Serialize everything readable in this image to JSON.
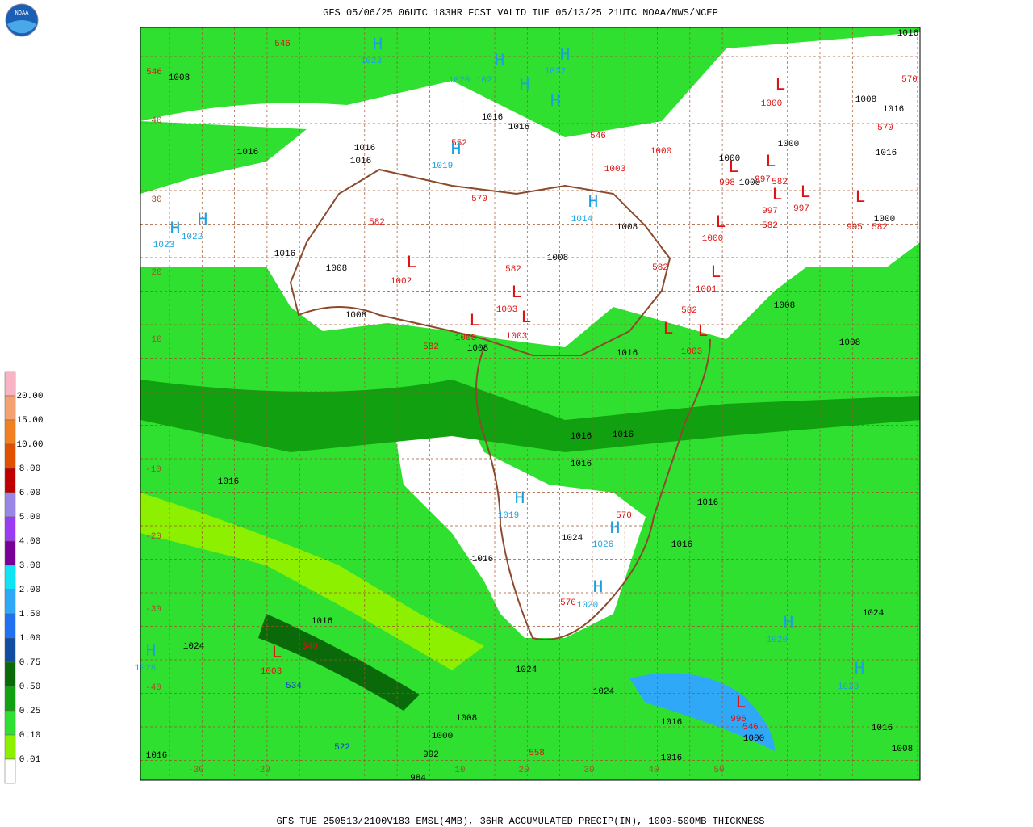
{
  "header": {
    "title": "GFS 05/06/25 06UTC 183HR FCST VALID TUE 05/13/25 21UTC NOAA/NWS/NCEP",
    "logo": "NOAA"
  },
  "footer": {
    "caption": "GFS TUE 250513/2100V183 EMSL(4MB), 36HR ACCUMULATED PRECIP(IN), 1000-500MB THICKNESS"
  },
  "legend": {
    "labels": [
      "20.00",
      "15.00",
      "10.00",
      "8.00",
      "6.00",
      "5.00",
      "4.00",
      "3.00",
      "2.00",
      "1.50",
      "1.00",
      "0.75",
      "0.50",
      "0.25",
      "0.10",
      "0.01"
    ],
    "colors": [
      "#f8b4c4",
      "#f4a070",
      "#f08020",
      "#e05000",
      "#c00000",
      "#9a86e6",
      "#9a3cf0",
      "#780096",
      "#10e4f4",
      "#30a8f8",
      "#2070f0",
      "#104ca0",
      "#0a6a0a",
      "#10a010",
      "#30e030",
      "#8cf000",
      "#ffffff"
    ]
  },
  "map": {
    "high_symbol": "H",
    "low_symbol": "L",
    "isobar_labels": [
      "1016",
      "1008",
      "1016",
      "1016",
      "1016",
      "1016",
      "1008",
      "1008",
      "1008",
      "1000",
      "1000",
      "1000",
      "1008",
      "1016",
      "1016",
      "1000",
      "1008",
      "1008",
      "1008",
      "1008",
      "1016",
      "1016",
      "1016",
      "1016",
      "1016",
      "1016",
      "1016",
      "1024",
      "1016",
      "1024",
      "1024",
      "1016",
      "1024",
      "1024",
      "1008",
      "1000",
      "992",
      "984",
      "1016",
      "1016",
      "1008",
      "1016",
      "1016",
      "1000",
      "1016",
      "1016"
    ],
    "high_values": [
      "1023",
      "1020",
      "1021",
      "1022",
      "1019",
      "1014",
      "1023",
      "1022",
      "1019",
      "1026",
      "1020",
      "1020",
      "1028",
      "1023"
    ],
    "low_values": [
      "1000",
      "1000",
      "1003",
      "998",
      "997",
      "997",
      "997",
      "995",
      "1000",
      "1001",
      "1002",
      "1003",
      "1003",
      "1003",
      "1003",
      "1003",
      "996"
    ],
    "thickness_labels": [
      "546",
      "546",
      "570",
      "570",
      "552",
      "546",
      "570",
      "582",
      "582",
      "582",
      "582",
      "582",
      "582",
      "582",
      "582",
      "570",
      "570",
      "558",
      "546",
      "540"
    ],
    "cold_thickness_labels": [
      "534",
      "522"
    ],
    "lat_labels": [
      "40",
      "30",
      "20",
      "10",
      "-10",
      "-20",
      "-30",
      "-40"
    ],
    "lon_labels": [
      "-30",
      "-20",
      "10",
      "20",
      "30",
      "40",
      "50"
    ]
  }
}
